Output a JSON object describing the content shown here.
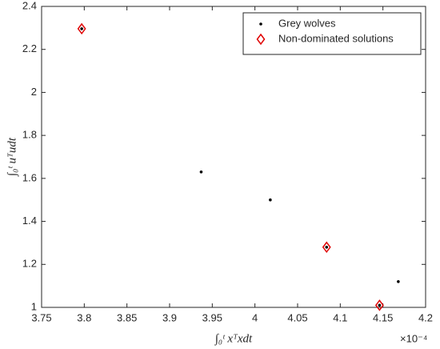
{
  "chart_data": {
    "type": "scatter",
    "xlabel": "∫₀ᵗ xᵀxdt",
    "ylabel": "∫₀ᵗ uᵀudt",
    "x_exponent": "×10⁻⁴",
    "xlim": [
      3.75,
      4.2
    ],
    "xticks": [
      3.75,
      3.8,
      3.85,
      3.9,
      3.95,
      4,
      4.05,
      4.1,
      4.15,
      4.2
    ],
    "ylim": [
      1,
      2.4
    ],
    "yticks": [
      1,
      1.2,
      1.4,
      1.6,
      1.8,
      2,
      2.2,
      2.4
    ],
    "legend": "northeast",
    "grid": false,
    "series": [
      {
        "name": "Grey wolves",
        "color": "#000000",
        "marker": "dot",
        "x": [
          3.797,
          3.937,
          4.018,
          4.084,
          4.146,
          4.168
        ],
        "y": [
          2.296,
          1.63,
          1.5,
          1.28,
          1.01,
          1.12
        ]
      },
      {
        "name": "Non-dominated solutions",
        "color": "#e00000",
        "marker": "diamond",
        "x": [
          3.797,
          4.084,
          4.146
        ],
        "y": [
          2.296,
          1.28,
          1.01
        ]
      }
    ]
  }
}
